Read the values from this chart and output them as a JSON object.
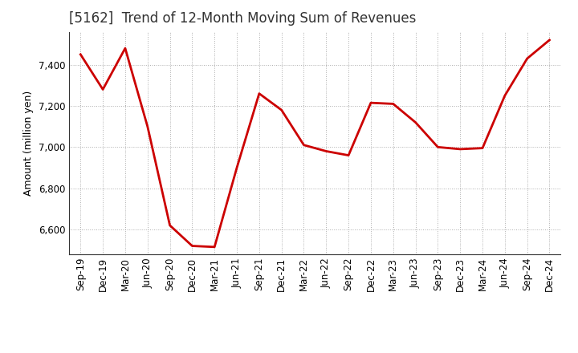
{
  "title": "[5162]  Trend of 12-Month Moving Sum of Revenues",
  "ylabel": "Amount (million yen)",
  "line_color": "#cc0000",
  "line_width": 2.0,
  "background_color": "#ffffff",
  "grid_color": "#999999",
  "labels": [
    "Sep-19",
    "Dec-19",
    "Mar-20",
    "Jun-20",
    "Sep-20",
    "Dec-20",
    "Mar-21",
    "Jun-21",
    "Sep-21",
    "Dec-21",
    "Mar-22",
    "Jun-22",
    "Sep-22",
    "Dec-22",
    "Mar-23",
    "Jun-23",
    "Sep-23",
    "Dec-23",
    "Mar-24",
    "Jun-24",
    "Sep-24",
    "Dec-24"
  ],
  "values": [
    7450,
    7280,
    7480,
    7100,
    6620,
    6520,
    6515,
    6900,
    7260,
    7180,
    7010,
    6980,
    6960,
    7215,
    7210,
    7120,
    7000,
    6990,
    6995,
    7250,
    7430,
    7520
  ],
  "ylim": [
    6480,
    7560
  ],
  "yticks": [
    6600,
    6800,
    7000,
    7200,
    7400
  ],
  "title_fontsize": 12,
  "axis_fontsize": 9,
  "tick_fontsize": 8.5
}
